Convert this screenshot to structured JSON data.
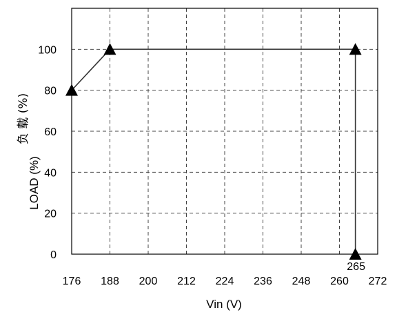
{
  "chart_data": {
    "type": "line",
    "x_ticks": [
      "176",
      "188",
      "200",
      "212",
      "224",
      "236",
      "248",
      "260",
      "272"
    ],
    "y_ticks": [
      "0",
      "20",
      "40",
      "60",
      "80",
      "100"
    ],
    "xlim": [
      176,
      272
    ],
    "ylim": [
      0,
      120
    ],
    "grid": true,
    "xlabel": "Vin (V)",
    "ylabel_cn": "负 载 (%)",
    "ylabel": "LOAD (%)",
    "series": [
      {
        "x": [
          176,
          188,
          265,
          265
        ],
        "y": [
          80,
          100,
          100,
          0
        ],
        "marker": "triangle"
      }
    ],
    "annotations": [
      {
        "text": "265",
        "x": 265,
        "y": 0
      }
    ]
  }
}
